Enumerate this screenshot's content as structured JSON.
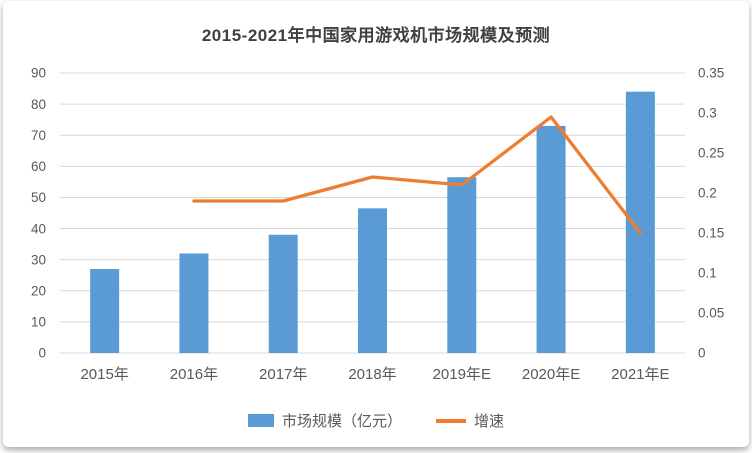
{
  "chart_data": {
    "type": "bar+line combo",
    "title": "2015-2021年中国家用游戏机市场规模及预测",
    "categories": [
      "2015年",
      "2016年",
      "2017年",
      "2018年",
      "2019年E",
      "2020年E",
      "2021年E"
    ],
    "series": [
      {
        "name": "市场规模（亿元）",
        "type": "bar",
        "axis": "left",
        "color": "#5B9BD5",
        "values": [
          27,
          32,
          38,
          46.5,
          56.5,
          73,
          84
        ]
      },
      {
        "name": "增速",
        "type": "line",
        "axis": "right",
        "color": "#ED7D31",
        "values": [
          null,
          0.19,
          0.19,
          0.22,
          0.21,
          0.295,
          0.15
        ]
      }
    ],
    "left_axis": {
      "min": 0,
      "max": 90,
      "step": 10
    },
    "right_axis": {
      "min": 0,
      "max": 0.35,
      "step": 0.05
    },
    "grid": true,
    "legend_position": "bottom"
  },
  "colors": {
    "bar": "#5B9BD5",
    "line": "#ED7D31",
    "gridline": "#D9D9D9",
    "axis_text": "#595959",
    "title_text": "#404040"
  }
}
